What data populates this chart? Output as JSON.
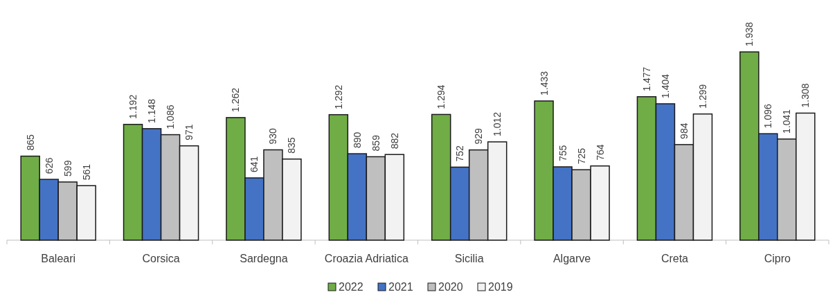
{
  "chart_data": {
    "type": "bar",
    "categories": [
      "Baleari",
      "Corsica",
      "Sardegna",
      "Croazia Adriatica",
      "Sicilia",
      "Algarve",
      "Creta",
      "Cipro"
    ],
    "series": [
      {
        "name": "2022",
        "color": "#70ad47",
        "values": [
          865,
          1192,
          1262,
          1292,
          1294,
          1433,
          1477,
          1938
        ],
        "value_labels": [
          "865",
          "1.192",
          "1.262",
          "1.292",
          "1.294",
          "1.433",
          "1.477",
          "1.938"
        ]
      },
      {
        "name": "2021",
        "color": "#4472c4",
        "values": [
          626,
          1148,
          641,
          890,
          752,
          755,
          1404,
          1096
        ],
        "value_labels": [
          "626",
          "1.148",
          "641",
          "890",
          "752",
          "755",
          "1.404",
          "1.096"
        ]
      },
      {
        "name": "2020",
        "color": "#bfbfbf",
        "values": [
          599,
          1086,
          930,
          859,
          929,
          725,
          984,
          1041
        ],
        "value_labels": [
          "599",
          "1.086",
          "930",
          "859",
          "929",
          "725",
          "984",
          "1.041"
        ]
      },
      {
        "name": "2019",
        "color": "#f2f2f2",
        "values": [
          561,
          971,
          835,
          882,
          1012,
          764,
          1299,
          1308
        ],
        "value_labels": [
          "561",
          "971",
          "835",
          "882",
          "1.012",
          "764",
          "1.299",
          "1.308"
        ]
      }
    ],
    "legend": "bottom"
  }
}
